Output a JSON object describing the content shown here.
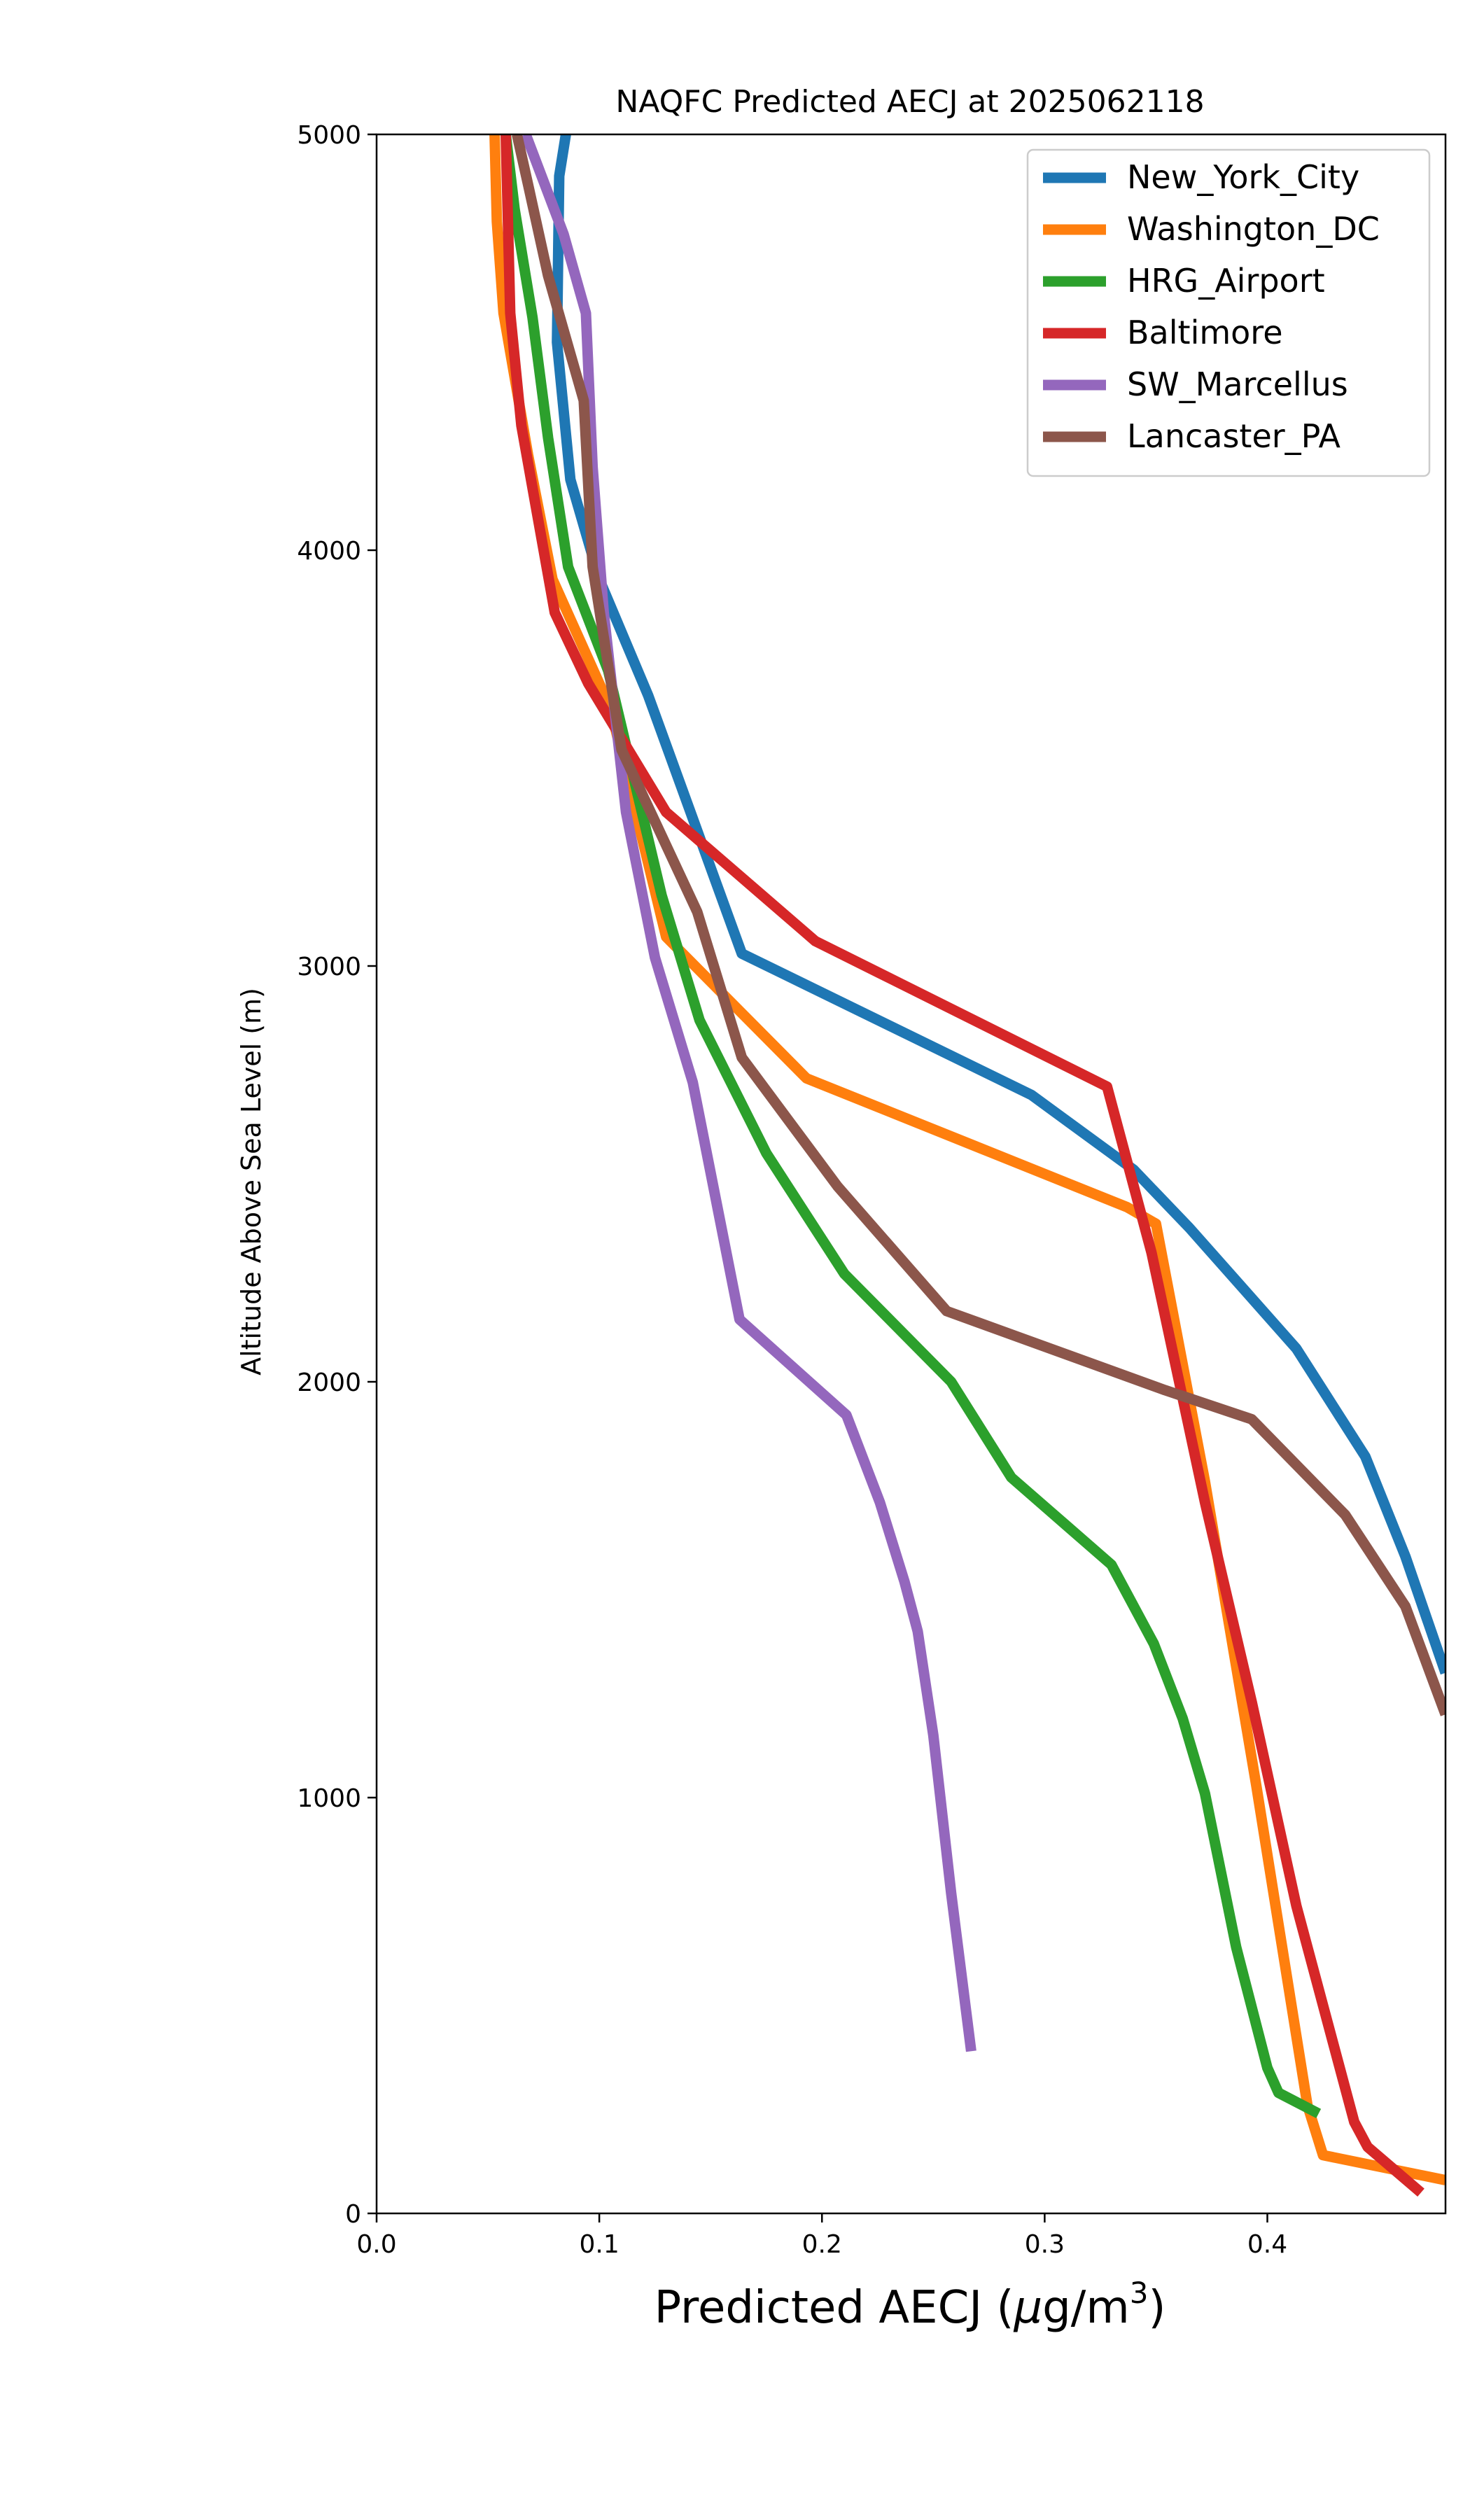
{
  "chart_data": {
    "type": "line",
    "title": "NAQFC Predicted AECJ at 2025062118",
    "xlabel": "Predicted AECJ (",
    "xlabel_symbol": "μ",
    "xlabel_unit": "g/m",
    "xlabel_sup": "3",
    "xlabel_close": ")",
    "ylabel": "Altitude Above Sea Level (m)",
    "xlim": [
      0.0,
      0.48
    ],
    "ylim": [
      0,
      5000
    ],
    "x_ticks": [
      0.0,
      0.1,
      0.2,
      0.3,
      0.4
    ],
    "x_tick_labels": [
      "0.0",
      "0.1",
      "0.2",
      "0.3",
      "0.4"
    ],
    "y_ticks": [
      0,
      1000,
      2000,
      3000,
      4000,
      5000
    ],
    "y_tick_labels": [
      "0",
      "1000",
      "2000",
      "3000",
      "4000",
      "5000"
    ],
    "grid": false,
    "legend_position": "top-right",
    "series": [
      {
        "name": "New_York_City",
        "color": "#1f77b4",
        "points": [
          [
            0.48,
            1300
          ],
          [
            0.462,
            1580
          ],
          [
            0.444,
            1820
          ],
          [
            0.413,
            2080
          ],
          [
            0.365,
            2370
          ],
          [
            0.34,
            2510
          ],
          [
            0.294,
            2690
          ],
          [
            0.164,
            3030
          ],
          [
            0.122,
            3650
          ],
          [
            0.1,
            3930
          ],
          [
            0.087,
            4170
          ],
          [
            0.081,
            4500
          ],
          [
            0.082,
            4900
          ],
          [
            0.085,
            5000
          ]
        ]
      },
      {
        "name": "Washington_DC",
        "color": "#ff7f0e",
        "points": [
          [
            0.48,
            80
          ],
          [
            0.425,
            140
          ],
          [
            0.418,
            260
          ],
          [
            0.395,
            1030
          ],
          [
            0.372,
            1760
          ],
          [
            0.35,
            2380
          ],
          [
            0.337,
            2420
          ],
          [
            0.193,
            2730
          ],
          [
            0.13,
            3070
          ],
          [
            0.105,
            3620
          ],
          [
            0.079,
            3930
          ],
          [
            0.068,
            4230
          ],
          [
            0.057,
            4570
          ],
          [
            0.054,
            4790
          ],
          [
            0.053,
            5000
          ]
        ]
      },
      {
        "name": "HRG_Airport",
        "color": "#2ca02c",
        "points": [
          [
            0.423,
            240
          ],
          [
            0.405,
            290
          ],
          [
            0.4,
            350
          ],
          [
            0.386,
            640
          ],
          [
            0.372,
            1010
          ],
          [
            0.362,
            1190
          ],
          [
            0.349,
            1370
          ],
          [
            0.33,
            1560
          ],
          [
            0.285,
            1770
          ],
          [
            0.258,
            2000
          ],
          [
            0.21,
            2260
          ],
          [
            0.175,
            2550
          ],
          [
            0.145,
            2870
          ],
          [
            0.128,
            3170
          ],
          [
            0.104,
            3710
          ],
          [
            0.086,
            3960
          ],
          [
            0.077,
            4270
          ],
          [
            0.07,
            4560
          ],
          [
            0.062,
            4820
          ],
          [
            0.058,
            5000
          ]
        ]
      },
      {
        "name": "Baltimore",
        "color": "#d62728",
        "points": [
          [
            0.469,
            50
          ],
          [
            0.445,
            160
          ],
          [
            0.439,
            220
          ],
          [
            0.413,
            740
          ],
          [
            0.393,
            1230
          ],
          [
            0.372,
            1710
          ],
          [
            0.348,
            2310
          ],
          [
            0.328,
            2710
          ],
          [
            0.197,
            3060
          ],
          [
            0.13,
            3370
          ],
          [
            0.095,
            3680
          ],
          [
            0.08,
            3850
          ],
          [
            0.065,
            4300
          ],
          [
            0.06,
            4570
          ],
          [
            0.058,
            5000
          ]
        ]
      },
      {
        "name": "SW_Marcellus",
        "color": "#9467bd",
        "points": [
          [
            0.267,
            390
          ],
          [
            0.258,
            770
          ],
          [
            0.25,
            1150
          ],
          [
            0.243,
            1400
          ],
          [
            0.237,
            1520
          ],
          [
            0.226,
            1710
          ],
          [
            0.211,
            1920
          ],
          [
            0.163,
            2150
          ],
          [
            0.142,
            2720
          ],
          [
            0.125,
            3020
          ],
          [
            0.112,
            3370
          ],
          [
            0.102,
            3850
          ],
          [
            0.097,
            4200
          ],
          [
            0.094,
            4570
          ],
          [
            0.084,
            4760
          ],
          [
            0.067,
            5000
          ]
        ]
      },
      {
        "name": "Lancaster_PA",
        "color": "#8c564b",
        "points": [
          [
            0.48,
            1200
          ],
          [
            0.462,
            1460
          ],
          [
            0.435,
            1680
          ],
          [
            0.393,
            1910
          ],
          [
            0.354,
            1980
          ],
          [
            0.256,
            2170
          ],
          [
            0.207,
            2470
          ],
          [
            0.164,
            2780
          ],
          [
            0.144,
            3130
          ],
          [
            0.11,
            3520
          ],
          [
            0.097,
            3960
          ],
          [
            0.093,
            4360
          ],
          [
            0.077,
            4660
          ],
          [
            0.068,
            4880
          ],
          [
            0.063,
            5000
          ]
        ]
      }
    ]
  }
}
